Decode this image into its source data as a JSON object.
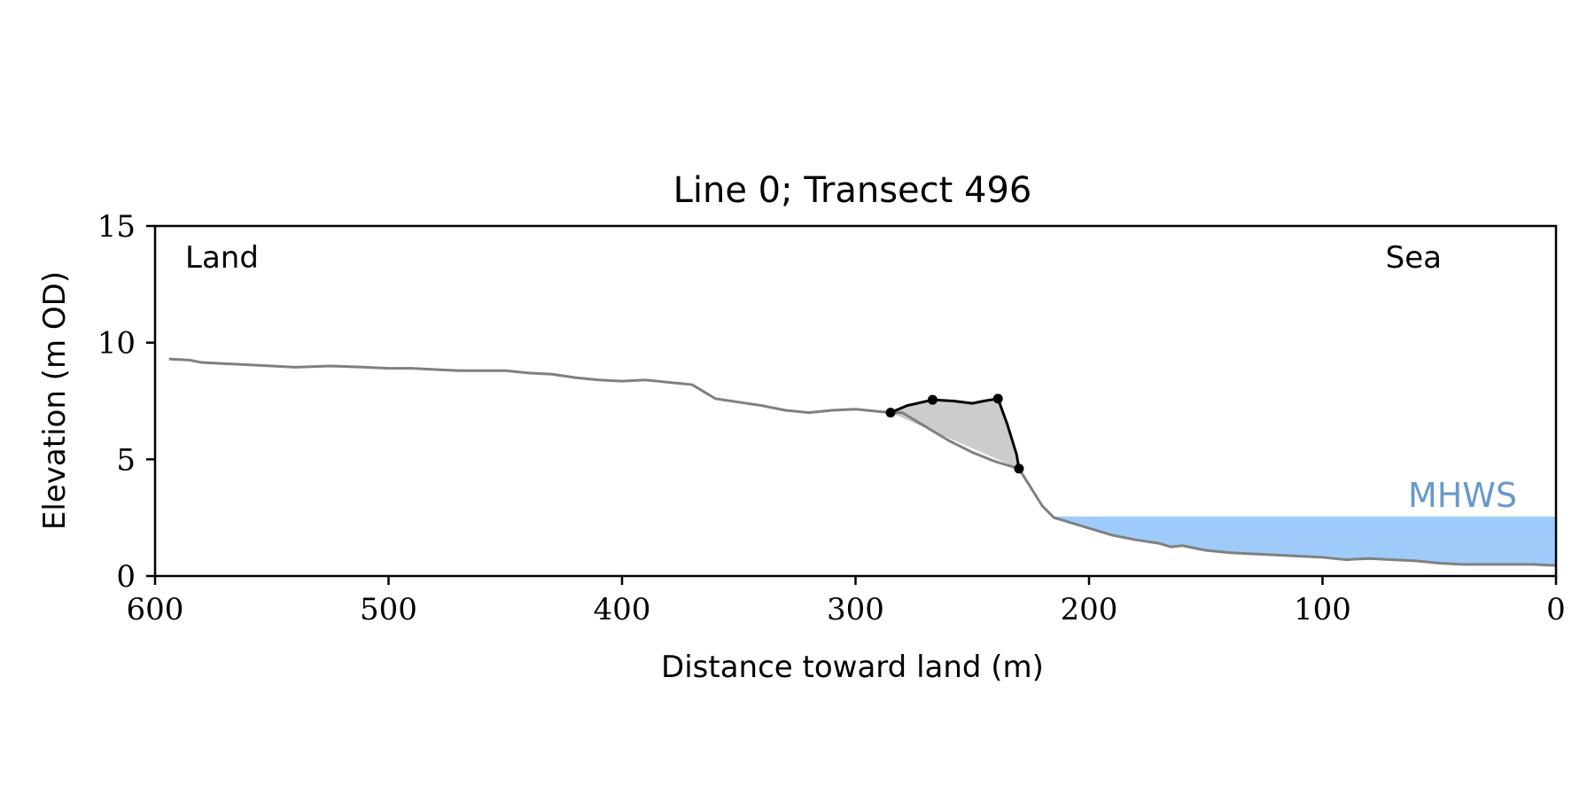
{
  "chart_data": {
    "type": "line",
    "title": "Line 0; Transect 496",
    "xlabel": "Distance toward land (m)",
    "ylabel": "Elevation (m OD)",
    "xlim": [
      600,
      0
    ],
    "ylim": [
      0,
      15
    ],
    "x_ticks": [
      600,
      500,
      400,
      300,
      200,
      100,
      0
    ],
    "y_ticks": [
      0,
      5,
      10,
      15
    ],
    "grid": false,
    "corner_labels": {
      "left": "Land",
      "right": "Sea"
    },
    "mhws": {
      "label": "MHWS",
      "elevation": 2.55,
      "color": "#9ecbfa",
      "label_color": "#6699cc"
    },
    "profile": {
      "color": "#808080",
      "points": [
        [
          594,
          9.3
        ],
        [
          585,
          9.25
        ],
        [
          580,
          9.15
        ],
        [
          570,
          9.1
        ],
        [
          560,
          9.05
        ],
        [
          550,
          9.0
        ],
        [
          540,
          8.95
        ],
        [
          525,
          9.0
        ],
        [
          510,
          8.95
        ],
        [
          500,
          8.9
        ],
        [
          490,
          8.9
        ],
        [
          480,
          8.85
        ],
        [
          470,
          8.8
        ],
        [
          460,
          8.8
        ],
        [
          450,
          8.8
        ],
        [
          440,
          8.7
        ],
        [
          430,
          8.65
        ],
        [
          420,
          8.5
        ],
        [
          410,
          8.4
        ],
        [
          400,
          8.35
        ],
        [
          390,
          8.4
        ],
        [
          380,
          8.3
        ],
        [
          370,
          8.2
        ],
        [
          365,
          7.9
        ],
        [
          360,
          7.6
        ],
        [
          350,
          7.45
        ],
        [
          340,
          7.3
        ],
        [
          330,
          7.1
        ],
        [
          320,
          7.0
        ],
        [
          310,
          7.1
        ],
        [
          300,
          7.15
        ],
        [
          290,
          7.05
        ],
        [
          285,
          7.0
        ],
        [
          280,
          7.0
        ],
        [
          270,
          6.4
        ],
        [
          260,
          5.8
        ],
        [
          250,
          5.3
        ],
        [
          240,
          4.9
        ],
        [
          230,
          4.6
        ],
        [
          225,
          3.8
        ],
        [
          220,
          3.0
        ],
        [
          215,
          2.5
        ],
        [
          210,
          2.35
        ],
        [
          200,
          2.05
        ],
        [
          190,
          1.75
        ],
        [
          180,
          1.55
        ],
        [
          170,
          1.4
        ],
        [
          165,
          1.25
        ],
        [
          160,
          1.3
        ],
        [
          150,
          1.1
        ],
        [
          140,
          1.0
        ],
        [
          130,
          0.95
        ],
        [
          120,
          0.9
        ],
        [
          110,
          0.85
        ],
        [
          100,
          0.8
        ],
        [
          90,
          0.7
        ],
        [
          80,
          0.75
        ],
        [
          70,
          0.7
        ],
        [
          60,
          0.65
        ],
        [
          50,
          0.55
        ],
        [
          40,
          0.5
        ],
        [
          30,
          0.5
        ],
        [
          20,
          0.5
        ],
        [
          10,
          0.5
        ],
        [
          0,
          0.45
        ]
      ]
    },
    "dune_feature": {
      "line_color": "#000000",
      "fill_color": "#cccccc",
      "points": [
        [
          285,
          7.0
        ],
        [
          278,
          7.3
        ],
        [
          267,
          7.55
        ],
        [
          258,
          7.5
        ],
        [
          250,
          7.4
        ],
        [
          245,
          7.5
        ],
        [
          239,
          7.6
        ],
        [
          235,
          6.5
        ],
        [
          231,
          5.2
        ],
        [
          230,
          4.6
        ]
      ],
      "markers": [
        [
          285,
          7.0
        ],
        [
          267,
          7.55
        ],
        [
          239,
          7.6
        ],
        [
          230,
          4.6
        ]
      ]
    }
  }
}
